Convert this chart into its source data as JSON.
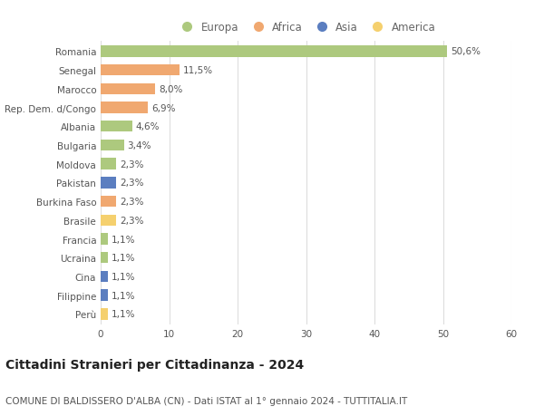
{
  "categories": [
    "Romania",
    "Senegal",
    "Marocco",
    "Rep. Dem. d/Congo",
    "Albania",
    "Bulgaria",
    "Moldova",
    "Pakistan",
    "Burkina Faso",
    "Brasile",
    "Francia",
    "Ucraina",
    "Cina",
    "Filippine",
    "Perù"
  ],
  "values": [
    50.6,
    11.5,
    8.0,
    6.9,
    4.6,
    3.4,
    2.3,
    2.3,
    2.3,
    2.3,
    1.1,
    1.1,
    1.1,
    1.1,
    1.1
  ],
  "labels": [
    "50,6%",
    "11,5%",
    "8,0%",
    "6,9%",
    "4,6%",
    "3,4%",
    "2,3%",
    "2,3%",
    "2,3%",
    "2,3%",
    "1,1%",
    "1,1%",
    "1,1%",
    "1,1%",
    "1,1%"
  ],
  "continents": [
    "Europa",
    "Africa",
    "Africa",
    "Africa",
    "Europa",
    "Europa",
    "Europa",
    "Asia",
    "Africa",
    "America",
    "Europa",
    "Europa",
    "Asia",
    "Asia",
    "America"
  ],
  "continent_colors": {
    "Europa": "#adc97e",
    "Africa": "#f0a870",
    "Asia": "#5b7ec0",
    "America": "#f5d06e"
  },
  "legend_order": [
    "Europa",
    "Africa",
    "Asia",
    "America"
  ],
  "title": "Cittadini Stranieri per Cittadinanza - 2024",
  "subtitle": "COMUNE DI BALDISSERO D'ALBA (CN) - Dati ISTAT al 1° gennaio 2024 - TUTTITALIA.IT",
  "xlim": [
    0,
    60
  ],
  "xticks": [
    0,
    10,
    20,
    30,
    40,
    50,
    60
  ],
  "background_color": "#ffffff",
  "grid_color": "#dddddd",
  "bar_height": 0.6,
  "label_fontsize": 7.5,
  "tick_fontsize": 7.5,
  "title_fontsize": 10,
  "subtitle_fontsize": 7.5,
  "legend_fontsize": 8.5
}
